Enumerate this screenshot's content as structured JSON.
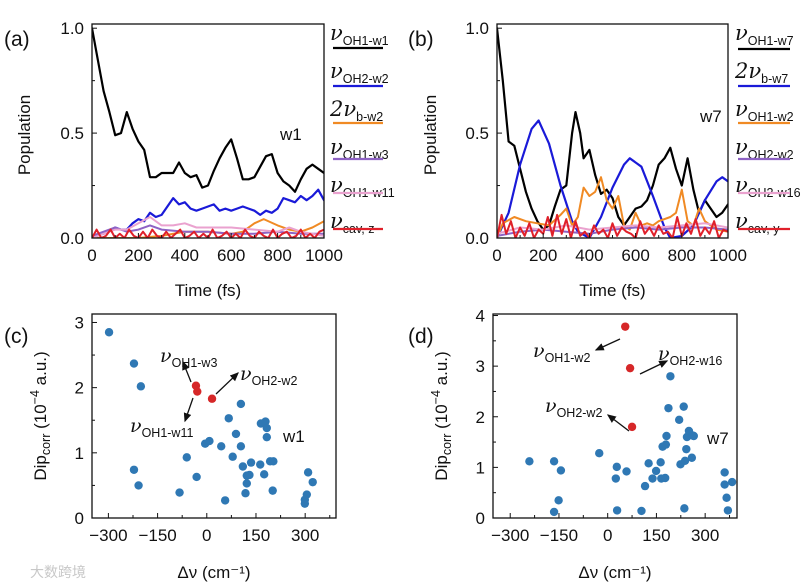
{
  "watermark": "大数跨境",
  "colors": {
    "black": "#000000",
    "blue": "#1a1ad8",
    "orange": "#f08a24",
    "purple": "#8e62c4",
    "pink": "#eaa2cf",
    "red": "#e0202a",
    "scatter_blue": "#2f78b4",
    "scatter_red": "#d62728"
  },
  "chart_data": [
    {
      "id": "a",
      "panel_label": "(a)",
      "type": "line",
      "xlabel": "Time (fs)",
      "ylabel": "Population",
      "xlim": [
        0,
        1000
      ],
      "ylim": [
        0,
        1.02
      ],
      "xticks": [
        0,
        200,
        400,
        600,
        800,
        1000
      ],
      "xtick_labels": [
        "0",
        "200",
        "400",
        "600",
        "800",
        "1000"
      ],
      "yticks": [
        0,
        0.5,
        1.0
      ],
      "ytick_labels": [
        "0.0",
        "0.5",
        "1.0"
      ],
      "annotation": "w1",
      "series": [
        {
          "main": "ν",
          "sub": "OH1-w1",
          "color": "black",
          "t": [
            0,
            25,
            50,
            75,
            100,
            125,
            150,
            175,
            200,
            225,
            250,
            275,
            300,
            325,
            350,
            375,
            400,
            425,
            450,
            475,
            500,
            525,
            550,
            575,
            600,
            625,
            650,
            675,
            700,
            725,
            750,
            775,
            800,
            825,
            850,
            875,
            900,
            925,
            950,
            975,
            1000
          ],
          "values": [
            1.0,
            0.85,
            0.7,
            0.6,
            0.49,
            0.5,
            0.6,
            0.52,
            0.46,
            0.42,
            0.29,
            0.29,
            0.31,
            0.31,
            0.31,
            0.36,
            0.31,
            0.29,
            0.3,
            0.24,
            0.25,
            0.32,
            0.38,
            0.43,
            0.47,
            0.38,
            0.28,
            0.28,
            0.29,
            0.34,
            0.39,
            0.4,
            0.31,
            0.27,
            0.25,
            0.22,
            0.28,
            0.33,
            0.35,
            0.33,
            0.31
          ]
        },
        {
          "main": "ν",
          "sub": "OH2-w2",
          "color": "blue",
          "t": [
            0,
            50,
            100,
            125,
            150,
            175,
            200,
            225,
            250,
            275,
            300,
            325,
            350,
            375,
            400,
            425,
            450,
            475,
            500,
            525,
            550,
            575,
            600,
            625,
            650,
            675,
            700,
            725,
            750,
            775,
            800,
            825,
            850,
            875,
            900,
            925,
            950,
            975,
            1000
          ],
          "values": [
            0.01,
            0.02,
            0.05,
            0.04,
            0.04,
            0.07,
            0.09,
            0.08,
            0.12,
            0.1,
            0.11,
            0.15,
            0.19,
            0.16,
            0.17,
            0.14,
            0.13,
            0.14,
            0.15,
            0.16,
            0.13,
            0.14,
            0.13,
            0.14,
            0.15,
            0.14,
            0.13,
            0.11,
            0.13,
            0.12,
            0.14,
            0.19,
            0.18,
            0.17,
            0.2,
            0.18,
            0.2,
            0.23,
            0.18
          ]
        },
        {
          "main": "2ν",
          "sub": "b-w2",
          "color": "orange",
          "t": [
            0,
            200,
            300,
            400,
            500,
            600,
            650,
            700,
            740,
            800,
            850,
            900,
            950,
            1000
          ],
          "values": [
            0.0,
            0.0,
            0.01,
            0.03,
            0.03,
            0.02,
            0.03,
            0.07,
            0.09,
            0.06,
            0.04,
            0.03,
            0.05,
            0.08
          ]
        },
        {
          "main": "ν",
          "sub": "OH1-w3",
          "color": "purple",
          "t": [
            0,
            100,
            150,
            200,
            250,
            300,
            400,
            500,
            600,
            700,
            800,
            900,
            1000
          ],
          "values": [
            0.01,
            0.05,
            0.03,
            0.04,
            0.06,
            0.04,
            0.03,
            0.03,
            0.02,
            0.02,
            0.03,
            0.02,
            0.02
          ]
        },
        {
          "main": "ν",
          "sub": "OH1-w11",
          "color": "pink",
          "t": [
            0,
            100,
            150,
            200,
            250,
            300,
            350,
            400,
            450,
            500,
            600,
            700,
            800,
            850,
            900,
            1000
          ],
          "values": [
            0.0,
            0.04,
            0.04,
            0.07,
            0.1,
            0.06,
            0.06,
            0.07,
            0.05,
            0.05,
            0.05,
            0.04,
            0.03,
            0.05,
            0.03,
            0.01
          ]
        },
        {
          "main": "ν",
          "sub": "cav, z",
          "color": "red",
          "t_step": 20,
          "values": [
            0,
            0.04,
            0,
            0.01,
            0.04,
            0,
            0.02,
            0,
            0.04,
            0.01,
            0,
            0.03,
            0,
            0.04,
            0.01,
            0,
            0.03,
            0,
            0.02,
            0.04,
            0,
            0.01,
            0.03,
            0,
            0.02,
            0,
            0.04,
            0,
            0.01,
            0.03,
            0,
            0.02,
            0,
            0.04,
            0.01,
            0,
            0.03,
            0.01,
            0,
            0.04,
            0,
            0.02,
            0.03,
            0,
            0.01,
            0.04,
            0,
            0.02,
            0,
            0.03,
            0.04
          ]
        }
      ]
    },
    {
      "id": "b",
      "panel_label": "(b)",
      "type": "line",
      "xlabel": "Time (fs)",
      "ylabel": "Population",
      "xlim": [
        0,
        1000
      ],
      "ylim": [
        0,
        1.02
      ],
      "xticks": [
        0,
        200,
        400,
        600,
        800,
        1000
      ],
      "xtick_labels": [
        "0",
        "200",
        "400",
        "600",
        "800",
        "1000"
      ],
      "yticks": [
        0,
        0.5,
        1.0
      ],
      "ytick_labels": [
        "0.0",
        "0.5",
        "1.0"
      ],
      "annotation": "w7",
      "series": [
        {
          "main": "ν",
          "sub": "OH1-w7",
          "color": "black",
          "t": [
            0,
            25,
            50,
            75,
            100,
            125,
            150,
            175,
            200,
            225,
            250,
            275,
            300,
            325,
            340,
            360,
            375,
            400,
            425,
            450,
            475,
            500,
            525,
            550,
            575,
            600,
            625,
            650,
            675,
            700,
            725,
            750,
            775,
            800,
            825,
            850,
            875,
            900,
            925,
            950,
            975,
            1000
          ],
          "values": [
            1.0,
            0.75,
            0.46,
            0.44,
            0.33,
            0.22,
            0.14,
            0.08,
            0.04,
            0.06,
            0.15,
            0.23,
            0.25,
            0.5,
            0.6,
            0.5,
            0.38,
            0.42,
            0.3,
            0.21,
            0.23,
            0.19,
            0.1,
            0.06,
            0.1,
            0.14,
            0.15,
            0.18,
            0.25,
            0.35,
            0.38,
            0.43,
            0.33,
            0.25,
            0.38,
            0.23,
            0.12,
            0.18,
            0.14,
            0.1,
            0.12,
            0.16
          ]
        },
        {
          "main": "2ν",
          "sub": "b-w7",
          "color": "blue",
          "t": [
            0,
            50,
            100,
            150,
            180,
            225,
            275,
            325,
            350,
            400,
            450,
            500,
            550,
            575,
            625,
            675,
            725,
            750,
            800,
            850,
            900,
            950,
            975,
            1000
          ],
          "values": [
            0.0,
            0.12,
            0.35,
            0.52,
            0.56,
            0.45,
            0.25,
            0.08,
            0.03,
            0.0,
            0.1,
            0.24,
            0.35,
            0.38,
            0.34,
            0.2,
            0.05,
            0.0,
            0.01,
            0.06,
            0.18,
            0.27,
            0.29,
            0.27
          ]
        },
        {
          "main": "ν",
          "sub": "OH1-w2",
          "color": "orange",
          "t": [
            0,
            25,
            75,
            125,
            175,
            225,
            275,
            300,
            325,
            350,
            375,
            400,
            425,
            450,
            475,
            500,
            525,
            550,
            575,
            600,
            625,
            650,
            675,
            700,
            750,
            775,
            800,
            825,
            850,
            875,
            900,
            950,
            1000
          ],
          "values": [
            0.0,
            0.07,
            0.1,
            0.08,
            0.07,
            0.06,
            0.11,
            0.14,
            0.06,
            0.1,
            0.24,
            0.2,
            0.22,
            0.29,
            0.18,
            0.14,
            0.2,
            0.06,
            0.04,
            0.12,
            0.06,
            0.07,
            0.06,
            0.08,
            0.1,
            0.12,
            0.23,
            0.08,
            0.06,
            0.14,
            0.08,
            0.04,
            0.03
          ]
        },
        {
          "main": "ν",
          "sub": "OH2-w2",
          "color": "purple",
          "t": [
            0,
            100,
            200,
            300,
            400,
            500,
            600,
            700,
            800,
            900,
            1000
          ],
          "values": [
            0.01,
            0.03,
            0.04,
            0.03,
            0.02,
            0.04,
            0.05,
            0.04,
            0.05,
            0.05,
            0.04
          ]
        },
        {
          "main": "ν",
          "sub": "OH2-w16",
          "color": "pink",
          "t": [
            0,
            100,
            200,
            300,
            400,
            500,
            600,
            700,
            800,
            900,
            1000
          ],
          "values": [
            0.02,
            0.05,
            0.04,
            0.06,
            0.04,
            0.05,
            0.06,
            0.05,
            0.06,
            0.07,
            0.05
          ]
        },
        {
          "main": "ν",
          "sub": "cav, y",
          "color": "red",
          "t_step": 20,
          "values": [
            0,
            0.11,
            0.02,
            0.08,
            0,
            0.05,
            0.01,
            0.07,
            0,
            0.04,
            0.02,
            0.1,
            0.01,
            0.11,
            0.02,
            0.09,
            0,
            0.08,
            0.01,
            0.03,
            0,
            0.06,
            0.02,
            0.04,
            0,
            0.07,
            0.01,
            0.05,
            0.03,
            0.02,
            0,
            0.08,
            0.02,
            0.05,
            0.01,
            0.06,
            0.02,
            0.03,
            0,
            0.1,
            0.01,
            0.07,
            0.02,
            0.09,
            0.01,
            0.05,
            0.02,
            0.08,
            0,
            0.04,
            0.03
          ]
        }
      ]
    },
    {
      "id": "c",
      "panel_label": "(c)",
      "type": "scatter",
      "xlabel": "Δν (cm⁻¹)",
      "ylabel_parts": {
        "base": "Dip",
        "sub": "corr",
        "pre": " (10",
        "sup": "−4",
        "post": " a.u.)"
      },
      "xlim": [
        -350,
        394
      ],
      "ylim": [
        0,
        3.13
      ],
      "xticks": [
        -300,
        -150,
        0,
        150,
        300
      ],
      "xtick_labels": [
        "−300",
        "−150",
        "0",
        "150",
        "300"
      ],
      "yticks": [
        0,
        1,
        2,
        3
      ],
      "ytick_labels": [
        "0",
        "1",
        "2",
        "3"
      ],
      "annotation": "w1",
      "points": [
        [
          -298,
          2.85
        ],
        [
          -222,
          2.37
        ],
        [
          -201,
          2.02
        ],
        [
          -222,
          0.74
        ],
        [
          -208,
          0.5
        ],
        [
          -83,
          0.39
        ],
        [
          -61,
          0.93
        ],
        [
          -31,
          0.63
        ],
        [
          -5,
          1.14
        ],
        [
          8,
          1.18
        ],
        [
          44,
          1.1
        ],
        [
          56,
          0.27
        ],
        [
          67,
          1.53
        ],
        [
          79,
          0.94
        ],
        [
          89,
          1.29
        ],
        [
          104,
          1.75
        ],
        [
          104,
          1.1
        ],
        [
          110,
          0.79
        ],
        [
          118,
          0.38
        ],
        [
          122,
          0.65
        ],
        [
          122,
          0.53
        ],
        [
          130,
          0.66
        ],
        [
          135,
          0.85
        ],
        [
          163,
          0.82
        ],
        [
          165,
          1.45
        ],
        [
          175,
          0.67
        ],
        [
          179,
          1.48
        ],
        [
          183,
          1.38
        ],
        [
          183,
          1.24
        ],
        [
          193,
          0.87
        ],
        [
          203,
          0.87
        ],
        [
          201,
          0.42
        ],
        [
          299,
          0.28
        ],
        [
          299,
          0.22
        ],
        [
          305,
          0.36
        ],
        [
          309,
          0.7
        ],
        [
          323,
          0.55
        ]
      ],
      "highlighted": [
        {
          "x": -33,
          "y": 2.03,
          "main": "ν",
          "sub": "OH1-w3"
        },
        {
          "x": -29,
          "y": 1.94,
          "main": "ν",
          "sub": "OH1-w11"
        },
        {
          "x": 16,
          "y": 1.83,
          "main": "ν",
          "sub": "OH2-w2"
        }
      ]
    },
    {
      "id": "d",
      "panel_label": "(d)",
      "type": "scatter",
      "xlabel": "Δν (cm⁻¹)",
      "ylabel_parts": {
        "base": "Dip",
        "sub": "corr",
        "pre": " (10",
        "sup": "−4",
        "post": " a.u.)"
      },
      "xlim": [
        -353,
        398
      ],
      "ylim": [
        0,
        4.03
      ],
      "xticks": [
        -300,
        -150,
        0,
        150,
        300
      ],
      "xtick_labels": [
        "−300",
        "−150",
        "0",
        "150",
        "300"
      ],
      "yticks": [
        0,
        1,
        2,
        3,
        4
      ],
      "ytick_labels": [
        "0",
        "1",
        "2",
        "3",
        "4"
      ],
      "annotation": "w7",
      "points": [
        [
          -241,
          1.12
        ],
        [
          -165,
          1.12
        ],
        [
          -144,
          0.94
        ],
        [
          -151,
          0.35
        ],
        [
          -165,
          0.12
        ],
        [
          -26,
          1.28
        ],
        [
          29,
          0.15
        ],
        [
          25,
          0.78
        ],
        [
          28,
          1.01
        ],
        [
          58,
          0.92
        ],
        [
          104,
          0.14
        ],
        [
          115,
          0.63
        ],
        [
          126,
          1.08
        ],
        [
          138,
          0.78
        ],
        [
          149,
          0.93
        ],
        [
          163,
          1.1
        ],
        [
          165,
          0.78
        ],
        [
          177,
          0.79
        ],
        [
          169,
          1.41
        ],
        [
          179,
          1.45
        ],
        [
          181,
          1.62
        ],
        [
          187,
          2.17
        ],
        [
          193,
          2.8
        ],
        [
          220,
          1.94
        ],
        [
          224,
          1.06
        ],
        [
          234,
          2.2
        ],
        [
          236,
          0.19
        ],
        [
          238,
          1.13
        ],
        [
          242,
          1.36
        ],
        [
          244,
          1.6
        ],
        [
          250,
          1.72
        ],
        [
          261,
          1.63
        ],
        [
          265,
          1.62
        ],
        [
          259,
          1.19
        ],
        [
          360,
          0.9
        ],
        [
          360,
          0.66
        ],
        [
          366,
          0.4
        ],
        [
          370,
          0.15
        ],
        [
          383,
          0.71
        ]
      ],
      "highlighted": [
        {
          "x": 54,
          "y": 3.78,
          "main": "ν",
          "sub": "OH1-w2"
        },
        {
          "x": 69,
          "y": 2.96,
          "main": "ν",
          "sub": "OH2-w16"
        },
        {
          "x": 75,
          "y": 1.8,
          "main": "ν",
          "sub": "OH2-w2"
        }
      ]
    }
  ]
}
